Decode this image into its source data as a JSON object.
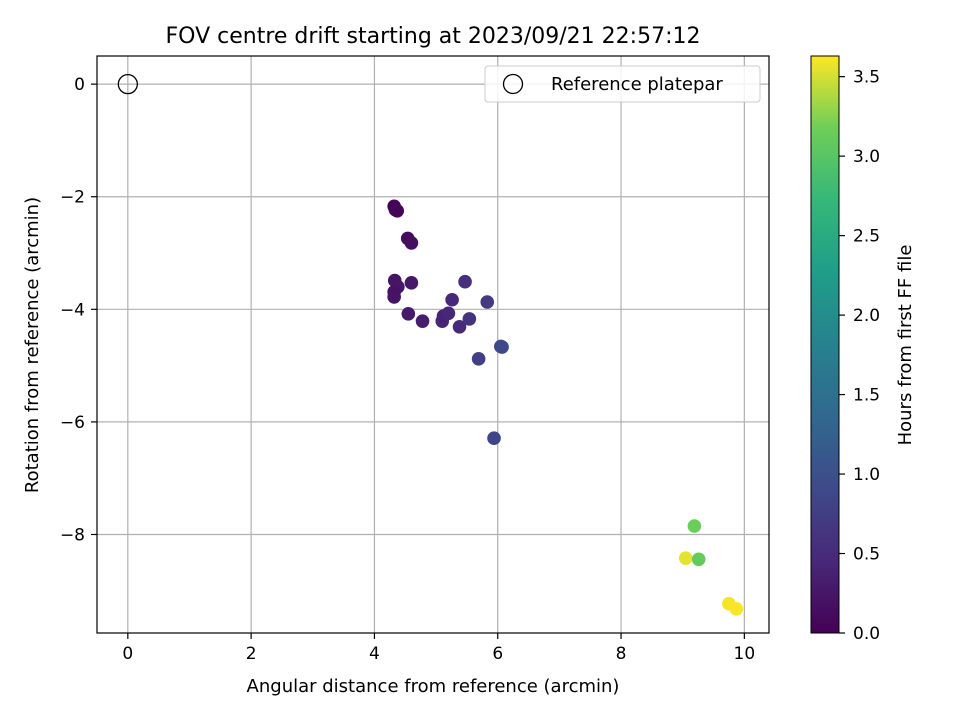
{
  "chart_data": {
    "type": "scatter",
    "title": "FOV centre drift starting at 2023/09/21 22:57:12",
    "xlabel": "Angular distance from reference (arcmin)",
    "ylabel": "Rotation from reference (arcmin)",
    "xlim": [
      -0.5,
      10.4
    ],
    "ylim": [
      -9.75,
      0.5
    ],
    "xticks": [
      0,
      2,
      4,
      6,
      8,
      10
    ],
    "yticks": [
      0,
      -2,
      -4,
      -6,
      -8
    ],
    "grid": true,
    "legend": {
      "placement": "top-right",
      "entries": [
        "Reference platepar"
      ]
    },
    "reference_point": {
      "x": 0,
      "y": 0,
      "marker": "open-circle",
      "label": "Reference platepar"
    },
    "colorbar": {
      "label": "Hours from first FF file",
      "colormap": "viridis",
      "range": [
        0,
        3.63
      ],
      "ticks": [
        "0.0",
        "0.5",
        "1.0",
        "1.5",
        "2.0",
        "2.5",
        "3.0",
        "3.5"
      ],
      "tick_values": [
        0,
        0.5,
        1.0,
        1.5,
        2.0,
        2.5,
        3.0,
        3.5
      ]
    },
    "points": [
      {
        "x": 4.32,
        "y": -2.17,
        "c": 0.02
      },
      {
        "x": 4.34,
        "y": -2.23,
        "c": 0.04
      },
      {
        "x": 4.37,
        "y": -2.25,
        "c": 0.06
      },
      {
        "x": 4.54,
        "y": -2.74,
        "c": 0.12
      },
      {
        "x": 4.6,
        "y": -2.82,
        "c": 0.15
      },
      {
        "x": 4.33,
        "y": -3.49,
        "c": 0.22
      },
      {
        "x": 4.38,
        "y": -3.6,
        "c": 0.24
      },
      {
        "x": 4.6,
        "y": -3.53,
        "c": 0.27
      },
      {
        "x": 4.32,
        "y": -3.69,
        "c": 0.2
      },
      {
        "x": 4.32,
        "y": -3.78,
        "c": 0.21
      },
      {
        "x": 4.55,
        "y": -4.08,
        "c": 0.3
      },
      {
        "x": 4.78,
        "y": -4.21,
        "c": 0.33
      },
      {
        "x": 5.1,
        "y": -4.21,
        "c": 0.42
      },
      {
        "x": 5.12,
        "y": -4.12,
        "c": 0.4
      },
      {
        "x": 5.2,
        "y": -4.07,
        "c": 0.44
      },
      {
        "x": 5.26,
        "y": -3.83,
        "c": 0.46
      },
      {
        "x": 5.38,
        "y": -4.31,
        "c": 0.5
      },
      {
        "x": 5.47,
        "y": -3.51,
        "c": 0.55
      },
      {
        "x": 5.54,
        "y": -4.17,
        "c": 0.6
      },
      {
        "x": 5.83,
        "y": -3.87,
        "c": 0.7
      },
      {
        "x": 5.69,
        "y": -4.88,
        "c": 0.78
      },
      {
        "x": 6.05,
        "y": -4.66,
        "c": 0.88
      },
      {
        "x": 6.07,
        "y": -4.67,
        "c": 0.9
      },
      {
        "x": 5.94,
        "y": -6.29,
        "c": 0.85
      },
      {
        "x": 9.19,
        "y": -7.85,
        "c": 3.15
      },
      {
        "x": 9.05,
        "y": -8.42,
        "c": 3.55
      },
      {
        "x": 9.26,
        "y": -8.44,
        "c": 3.1
      },
      {
        "x": 9.75,
        "y": -9.23,
        "c": 3.6
      },
      {
        "x": 9.87,
        "y": -9.32,
        "c": 3.62
      }
    ]
  }
}
